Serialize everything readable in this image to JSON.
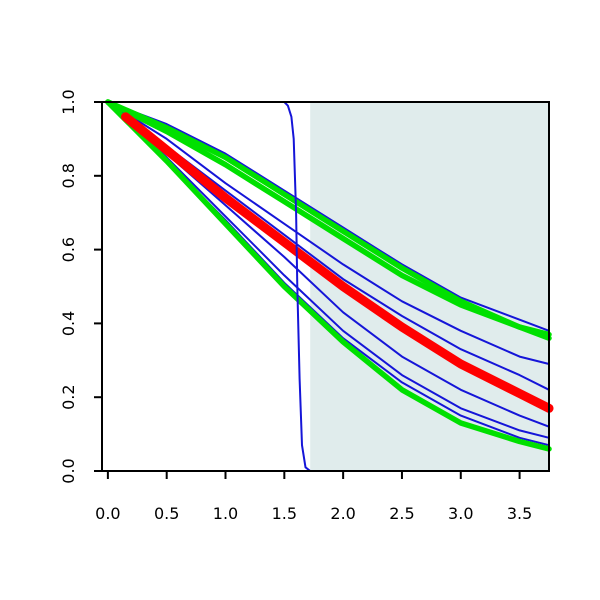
{
  "chart_data": {
    "type": "line",
    "title": "",
    "xlabel": "",
    "ylabel": "",
    "xlim": [
      -0.05,
      3.75
    ],
    "ylim": [
      0,
      1
    ],
    "x_ticks": [
      0,
      0.5,
      1,
      1.5,
      2,
      2.5,
      3,
      3.5
    ],
    "x_tick_labels": [
      "0.0",
      "0.5",
      "1.0",
      "1.5",
      "2.0",
      "2.5",
      "3.0",
      "3.5"
    ],
    "y_ticks": [
      0,
      0.2,
      0.4,
      0.6,
      0.8,
      1
    ],
    "y_tick_labels": [
      "0.0",
      "0.2",
      "0.4",
      "0.6",
      "0.8",
      "1.0"
    ],
    "grid": false,
    "legend": "none",
    "shaded_region": {
      "x_from": 1.72,
      "x_to": 3.75,
      "color": "#e0ecec"
    },
    "series": [
      {
        "color": "#1515d8",
        "weight": "thin",
        "x": [
          0,
          0.5,
          1.0,
          1.5,
          2.0,
          2.5,
          3.0,
          3.5,
          3.75
        ],
        "y": [
          1.0,
          0.94,
          0.86,
          0.76,
          0.66,
          0.56,
          0.47,
          0.41,
          0.38
        ]
      },
      {
        "color": "#1515d8",
        "weight": "thin",
        "x": [
          0,
          0.5,
          1.0,
          1.5,
          2.0,
          2.5,
          3.0,
          3.5,
          3.75
        ],
        "y": [
          1.0,
          0.9,
          0.78,
          0.67,
          0.56,
          0.46,
          0.38,
          0.31,
          0.29
        ]
      },
      {
        "color": "#1515d8",
        "weight": "thin",
        "x": [
          0,
          0.5,
          1.0,
          1.5,
          2.0,
          2.5,
          3.0,
          3.5,
          3.75
        ],
        "y": [
          1.0,
          0.88,
          0.76,
          0.64,
          0.52,
          0.42,
          0.33,
          0.26,
          0.22
        ]
      },
      {
        "color": "#1515d8",
        "weight": "thin",
        "x": [
          0,
          0.5,
          1.0,
          1.5,
          2.0,
          2.5,
          3.0,
          3.5,
          3.75
        ],
        "y": [
          1.0,
          0.86,
          0.72,
          0.58,
          0.43,
          0.31,
          0.22,
          0.15,
          0.12
        ]
      },
      {
        "color": "#1515d8",
        "weight": "thin",
        "x": [
          0,
          0.5,
          1.0,
          1.5,
          2.0,
          2.5,
          3.0,
          3.5,
          3.75
        ],
        "y": [
          1.0,
          0.85,
          0.69,
          0.53,
          0.38,
          0.26,
          0.17,
          0.11,
          0.09
        ]
      },
      {
        "color": "#1515d8",
        "weight": "thin",
        "x": [
          0,
          0.5,
          1.0,
          1.5,
          2.0,
          2.5,
          3.0,
          3.5,
          3.75
        ],
        "y": [
          1.0,
          0.84,
          0.68,
          0.51,
          0.36,
          0.24,
          0.15,
          0.09,
          0.07
        ]
      },
      {
        "color": "#00e000",
        "weight": "thick",
        "x": [
          0,
          0.5,
          1.0,
          1.5,
          2.0,
          2.5,
          3.0,
          3.5,
          3.75
        ],
        "y": [
          1.0,
          0.93,
          0.85,
          0.75,
          0.65,
          0.55,
          0.46,
          0.39,
          0.37
        ]
      },
      {
        "color": "#00e000",
        "weight": "thick",
        "x": [
          0,
          0.5,
          1.0,
          1.5,
          2.0,
          2.5,
          3.0,
          3.5,
          3.75
        ],
        "y": [
          1.0,
          0.92,
          0.83,
          0.73,
          0.63,
          0.53,
          0.45,
          0.39,
          0.36
        ]
      },
      {
        "color": "#00e000",
        "weight": "thick",
        "x": [
          0,
          0.5,
          1.0,
          1.5,
          2.0,
          2.5,
          3.0,
          3.5,
          3.75
        ],
        "y": [
          1.0,
          0.84,
          0.67,
          0.5,
          0.35,
          0.22,
          0.13,
          0.08,
          0.06
        ]
      },
      {
        "color": "#ff0000",
        "weight": "extra-thick",
        "x": [
          0.15,
          0.5,
          1.0,
          1.5,
          2.0,
          2.5,
          3.0,
          3.5,
          3.75
        ],
        "y": [
          0.96,
          0.87,
          0.74,
          0.62,
          0.5,
          0.39,
          0.29,
          0.21,
          0.17
        ]
      },
      {
        "color": "#1515d8",
        "weight": "thin",
        "x": [
          0,
          0.5,
          1.0,
          1.4,
          1.5,
          1.53,
          1.56,
          1.58,
          1.6,
          1.61,
          1.63,
          1.65,
          1.68,
          1.72,
          3.75
        ],
        "y": [
          1.0,
          1.0,
          1.0,
          1.0,
          1.0,
          0.99,
          0.96,
          0.9,
          0.7,
          0.5,
          0.25,
          0.07,
          0.01,
          0.0,
          0.0
        ]
      }
    ]
  }
}
